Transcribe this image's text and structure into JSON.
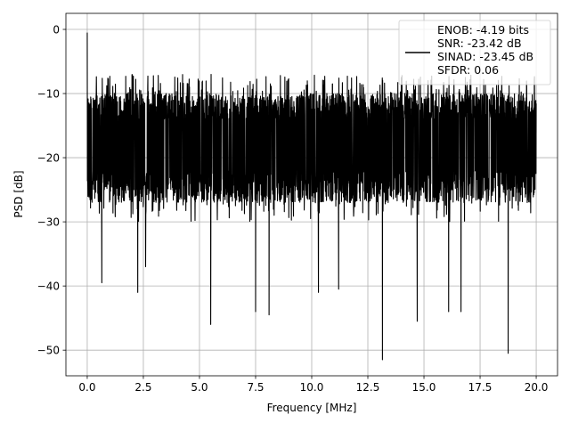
{
  "chart_data": {
    "type": "line",
    "title": "",
    "xlabel": "Frequency [MHz]",
    "ylabel": "PSD [dB]",
    "xlim": [
      -0.95,
      20.95
    ],
    "ylim": [
      -54,
      2.5
    ],
    "xticks": [
      0.0,
      2.5,
      5.0,
      7.5,
      10.0,
      12.5,
      15.0,
      17.5,
      20.0
    ],
    "xtick_labels": [
      "0.0",
      "2.5",
      "5.0",
      "7.5",
      "10.0",
      "12.5",
      "15.0",
      "17.5",
      "20.0"
    ],
    "yticks": [
      0,
      -10,
      -20,
      -30,
      -40,
      -50
    ],
    "ytick_labels": [
      "0",
      "−10",
      "−20",
      "−30",
      "−40",
      "−50"
    ],
    "grid": true,
    "legend_position": "top-right",
    "series": [
      {
        "name": "ENOB: -4.19 bits\nSNR: -23.42 dB\nSINAD: -23.45 dB\nSFDR: 0.06",
        "color": "#000000",
        "x_range": [
          0.0,
          20.0
        ],
        "typical_upper_db": -10,
        "typical_lower_db": -27,
        "notable_points": [
          {
            "x": 0.0,
            "y": -0.5
          },
          {
            "x": 0.05,
            "y": -22
          },
          {
            "x": 0.65,
            "y": -39.5
          },
          {
            "x": 2.25,
            "y": -41
          },
          {
            "x": 2.6,
            "y": -37
          },
          {
            "x": 5.5,
            "y": -46
          },
          {
            "x": 7.5,
            "y": -44
          },
          {
            "x": 8.1,
            "y": -44.5
          },
          {
            "x": 10.3,
            "y": -41
          },
          {
            "x": 11.2,
            "y": -40.5
          },
          {
            "x": 13.15,
            "y": -51.5
          },
          {
            "x": 14.7,
            "y": -45.5
          },
          {
            "x": 16.1,
            "y": -44
          },
          {
            "x": 16.65,
            "y": -44
          },
          {
            "x": 18.75,
            "y": -50.5
          }
        ]
      }
    ]
  }
}
